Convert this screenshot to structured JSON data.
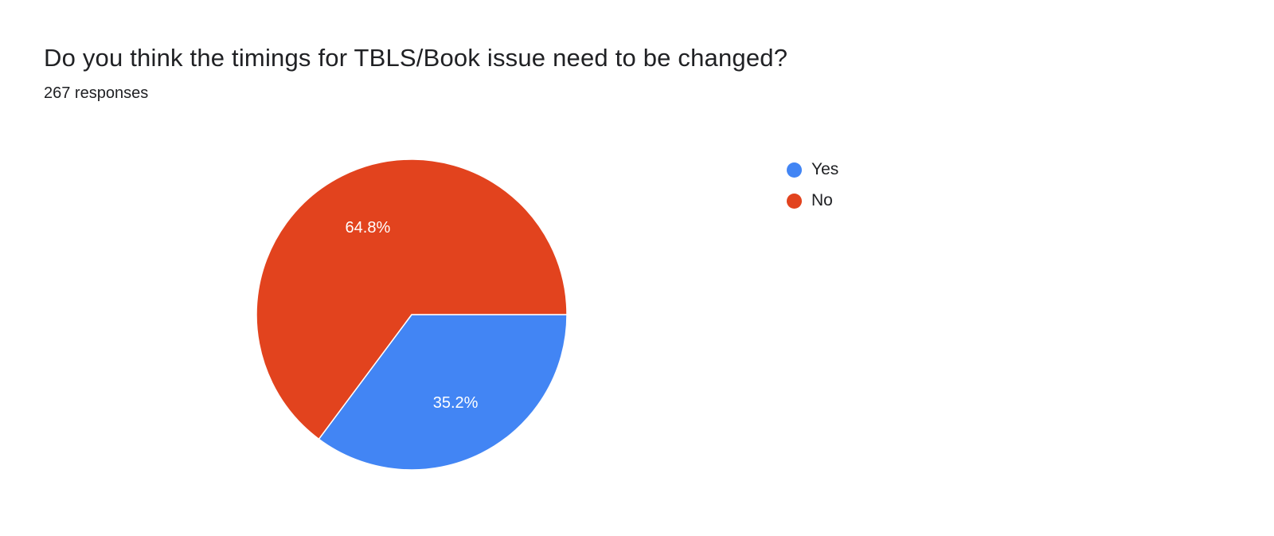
{
  "header": {
    "title": "Do you think the timings for TBLS/Book issue need to be changed?",
    "responses": "267 responses"
  },
  "chart_data": {
    "type": "pie",
    "title": "Do you think the timings for TBLS/Book issue need to be changed?",
    "responses_count": 267,
    "categories": [
      "Yes",
      "No"
    ],
    "values": [
      35.2,
      64.8
    ],
    "slice_labels": [
      "35.2%",
      "64.8%"
    ],
    "colors": [
      "#4285f4",
      "#e2431e"
    ],
    "start_angle_deg": 0,
    "direction": "clockwise",
    "legend_position": "right",
    "label_text_color": "#ffffff"
  },
  "legend": {
    "items": [
      {
        "label": "Yes",
        "color": "#4285f4"
      },
      {
        "label": "No",
        "color": "#e2431e"
      }
    ]
  }
}
